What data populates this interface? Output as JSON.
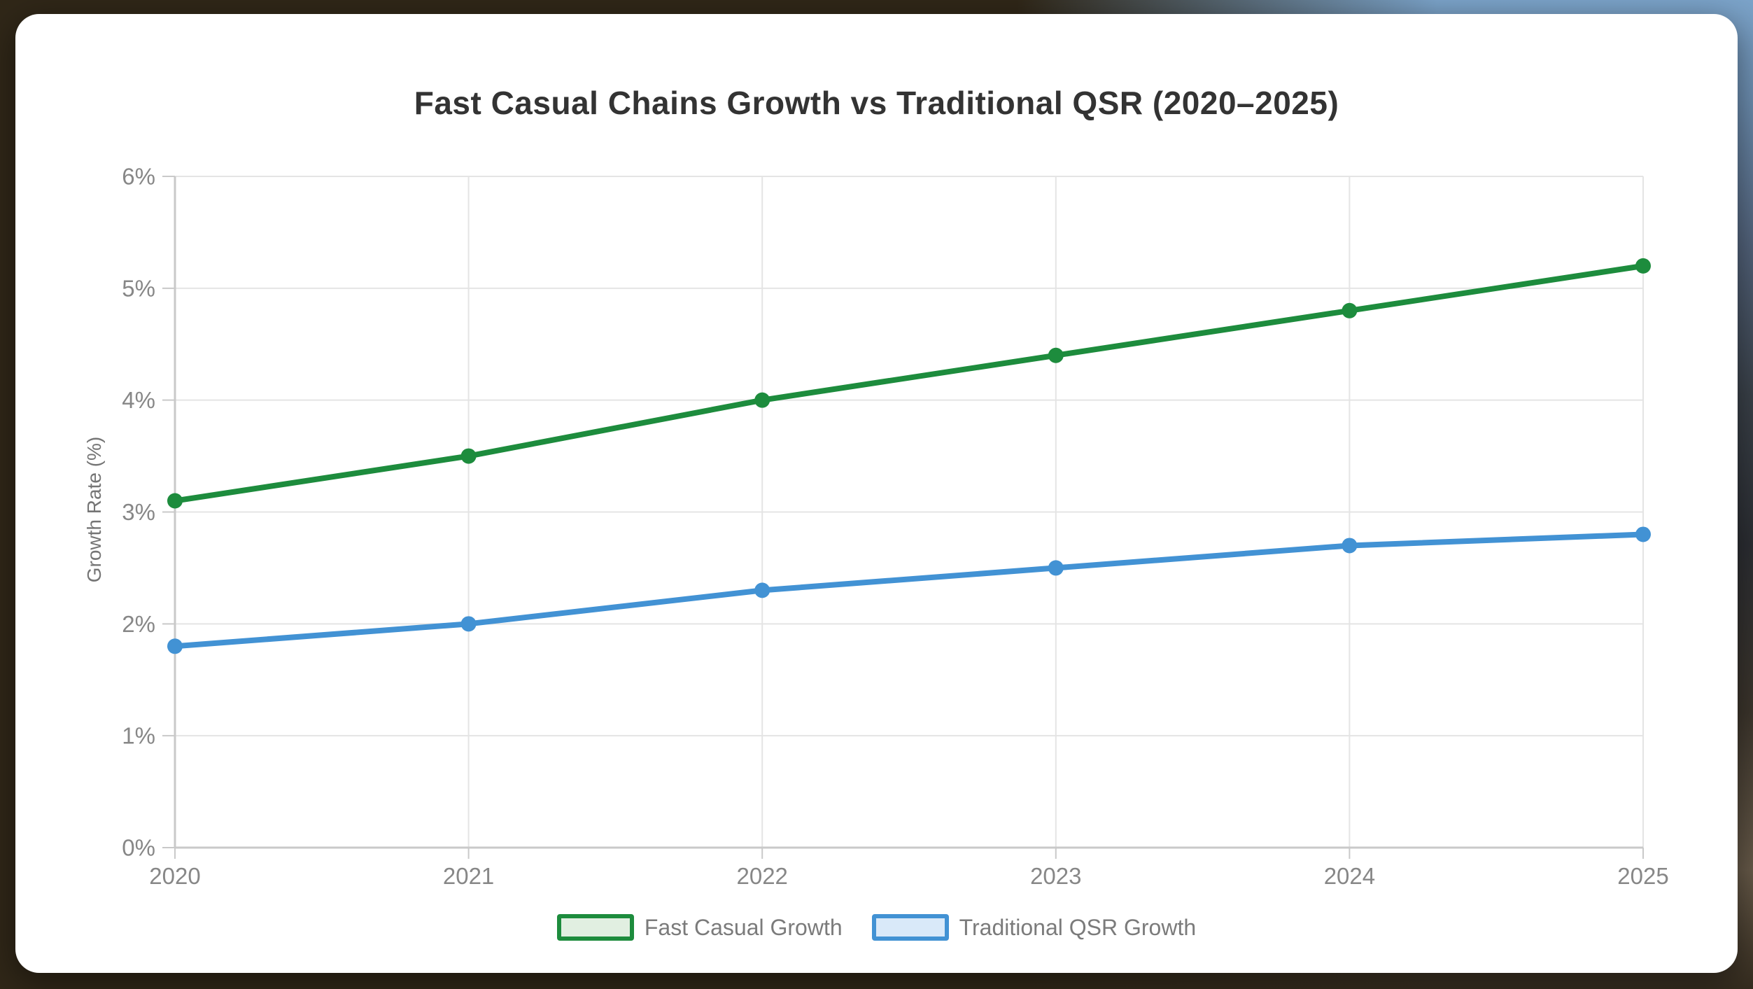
{
  "chart_data": {
    "type": "line",
    "title": "Fast Casual Chains Growth vs Traditional QSR (2020–2025)",
    "ylabel": "Growth Rate (%)",
    "xlabel": "",
    "categories": [
      "2020",
      "2021",
      "2022",
      "2023",
      "2024",
      "2025"
    ],
    "series": [
      {
        "name": "Fast Casual Growth",
        "color": "#1d8c3d",
        "legend_fill": "#e1efe1",
        "values": [
          3.1,
          3.5,
          4.0,
          4.4,
          4.8,
          5.2
        ]
      },
      {
        "name": "Traditional QSR Growth",
        "color": "#4292d4",
        "legend_fill": "#d9e9f9",
        "values": [
          1.8,
          2.0,
          2.3,
          2.5,
          2.7,
          2.8
        ]
      }
    ],
    "ylim": [
      0,
      6
    ],
    "y_ticklabels": [
      "0%",
      "1%",
      "2%",
      "3%",
      "4%",
      "5%",
      "6%"
    ],
    "grid": true,
    "legend_position": "bottom",
    "style": {
      "tick_label_color": "#878787",
      "axis_line_color": "#c9c9c9",
      "gridline_color": "#e4e4e4",
      "title_color": "#333333"
    }
  }
}
